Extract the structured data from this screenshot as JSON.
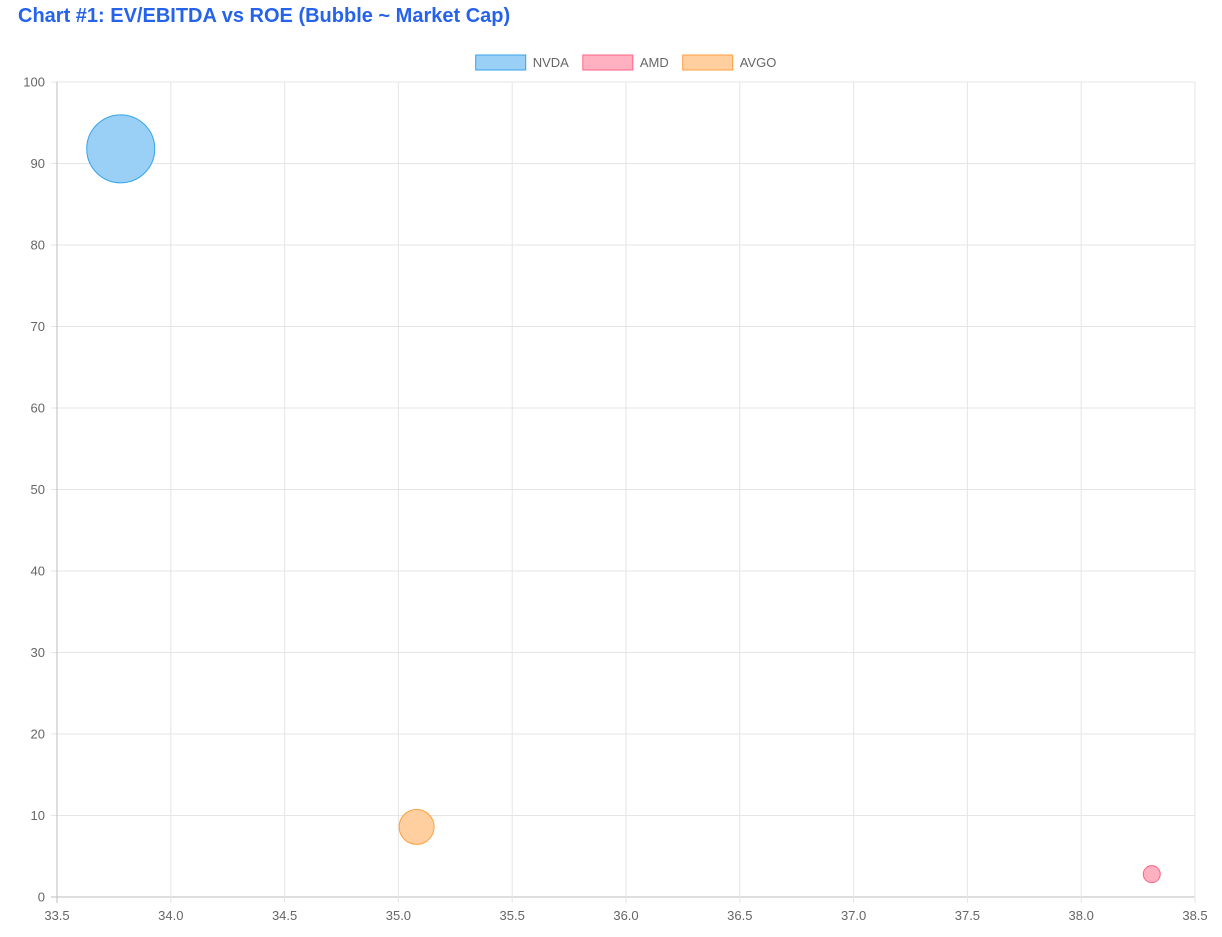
{
  "title": "Chart #1: EV/EBITDA vs ROE (Bubble ~ Market Cap)",
  "chart_data": {
    "type": "scatter",
    "subtype": "bubble",
    "title": "Chart #1: EV/EBITDA vs ROE (Bubble ~ Market Cap)",
    "xlabel": "",
    "ylabel": "",
    "xlim": [
      33.5,
      38.5
    ],
    "ylim": [
      0,
      100
    ],
    "x_ticks": [
      "33.5",
      "34.0",
      "34.5",
      "35.0",
      "35.5",
      "36.0",
      "36.5",
      "37.0",
      "37.5",
      "38.0",
      "38.5"
    ],
    "y_ticks": [
      "0",
      "10",
      "20",
      "30",
      "40",
      "50",
      "60",
      "70",
      "80",
      "90",
      "100"
    ],
    "grid": true,
    "legend_position": "top-center",
    "series": [
      {
        "name": "NVDA",
        "fill": "#9ad0f5",
        "stroke": "#36a2eb",
        "points": [
          {
            "x": 33.78,
            "y": 91.8,
            "r": 34
          }
        ]
      },
      {
        "name": "AMD",
        "fill": "#ffb1c1",
        "stroke": "#ff6384",
        "points": [
          {
            "x": 38.31,
            "y": 2.8,
            "r": 8.5
          }
        ]
      },
      {
        "name": "AVGO",
        "fill": "#ffcf9f",
        "stroke": "#ff9f40",
        "points": [
          {
            "x": 35.08,
            "y": 8.6,
            "r": 17.5
          }
        ]
      }
    ]
  }
}
